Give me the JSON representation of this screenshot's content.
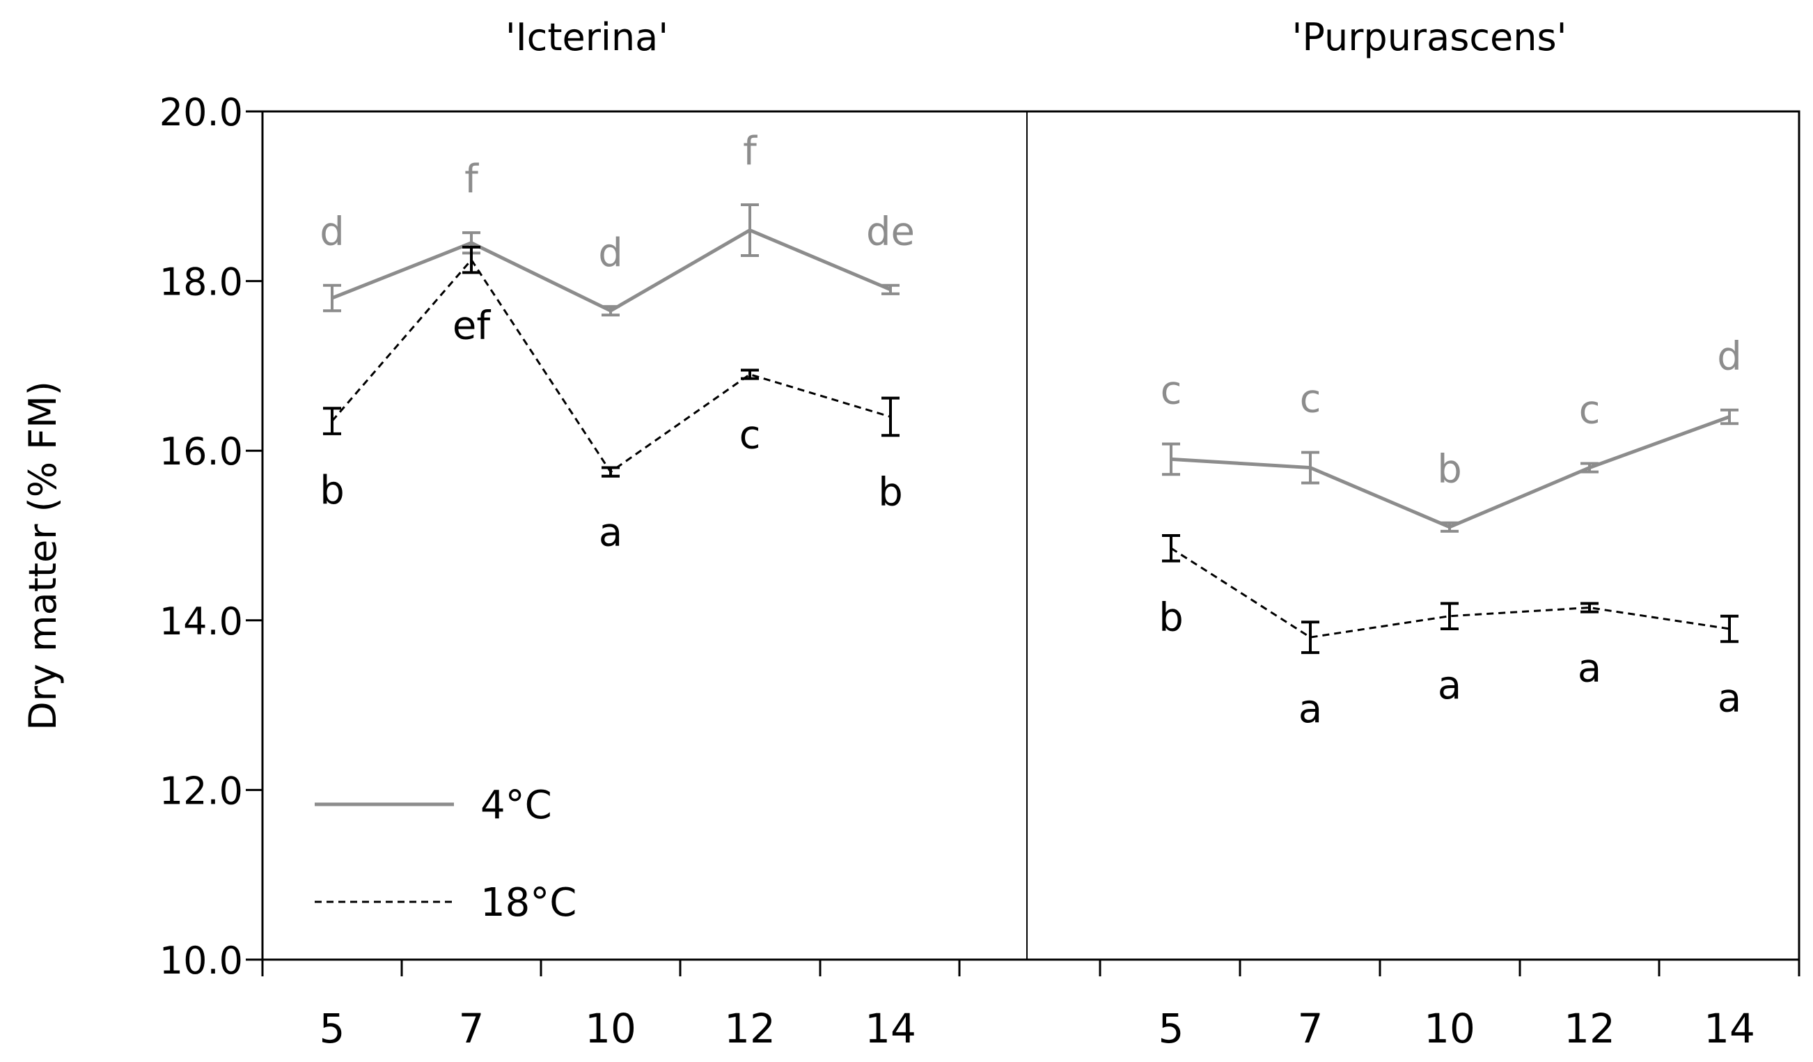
{
  "chart_data": {
    "type": "line",
    "ylabel": "Dry matter (% FM)",
    "ylim": [
      10.0,
      20.0
    ],
    "yticks": [
      "10.0",
      "12.0",
      "14.0",
      "16.0",
      "18.0",
      "20.0"
    ],
    "colors": {
      "c4": "#8c8c8c",
      "c18": "#000000"
    },
    "legend": {
      "placement": "bottom-left",
      "items": [
        {
          "label": "4°C",
          "style": "solid",
          "series": "c4"
        },
        {
          "label": "18°C",
          "style": "dashed",
          "series": "c18"
        }
      ]
    },
    "panels": [
      {
        "title": "'Icterina'",
        "x": [
          "5",
          "7",
          "10",
          "12",
          "14"
        ],
        "series": [
          {
            "name": "4°C",
            "key": "c4",
            "values": [
              17.8,
              18.45,
              17.65,
              18.6,
              17.9
            ],
            "errors": [
              0.15,
              0.12,
              0.05,
              0.3,
              0.05
            ],
            "letters": [
              "d",
              "f",
              "d",
              "f",
              "de"
            ]
          },
          {
            "name": "18°C",
            "key": "c18",
            "values": [
              16.35,
              18.25,
              15.75,
              16.9,
              16.4
            ],
            "errors": [
              0.15,
              0.15,
              0.05,
              0.05,
              0.22
            ],
            "letters": [
              "b",
              "ef",
              "a",
              "c",
              "b"
            ]
          }
        ]
      },
      {
        "title": "'Purpurascens'",
        "x": [
          "5",
          "7",
          "10",
          "12",
          "14"
        ],
        "series": [
          {
            "name": "4°C",
            "key": "c4",
            "values": [
              15.9,
              15.8,
              15.1,
              15.8,
              16.4
            ],
            "errors": [
              0.18,
              0.18,
              0.05,
              0.05,
              0.08
            ],
            "letters": [
              "c",
              "c",
              "b",
              "c",
              "d"
            ]
          },
          {
            "name": "18°C",
            "key": "c18",
            "values": [
              14.85,
              13.8,
              14.05,
              14.15,
              13.9
            ],
            "errors": [
              0.15,
              0.18,
              0.15,
              0.05,
              0.15
            ],
            "letters": [
              "b",
              "a",
              "a",
              "a",
              "a"
            ]
          }
        ]
      }
    ]
  }
}
